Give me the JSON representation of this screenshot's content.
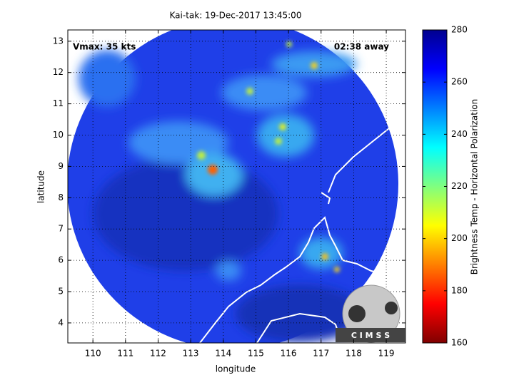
{
  "chart_data": {
    "type": "map",
    "title": "Kai-tak: 19-Dec-2017 13:45:00",
    "xlabel": "longitude",
    "ylabel": "latitude",
    "xlim": [
      109.23,
      119.59
    ],
    "ylim": [
      3.36,
      13.36
    ],
    "xticks": [
      110,
      111,
      112,
      113,
      114,
      115,
      116,
      117,
      118,
      119
    ],
    "yticks": [
      4,
      5,
      6,
      7,
      8,
      9,
      10,
      11,
      12,
      13
    ],
    "grid": true,
    "annotations": [
      "Vmax: 35 kts",
      "02:38 away"
    ],
    "logo": "C I M S S",
    "colorbar": {
      "label": "Brightness Temp - Horizontal Polarization",
      "lim": [
        160,
        280
      ],
      "ticks": [
        160,
        180,
        200,
        220,
        240,
        260,
        280
      ]
    }
  }
}
